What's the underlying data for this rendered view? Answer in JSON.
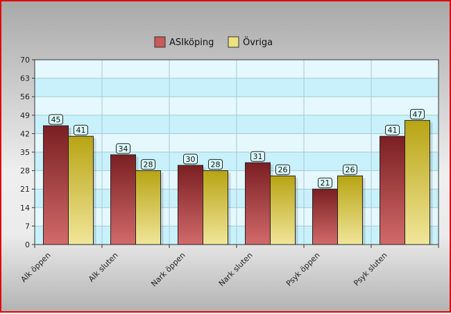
{
  "chart_data": {
    "type": "bar",
    "categories": [
      "Alk öppen",
      "Alk sluten",
      "Nark öppen",
      "Nark sluten",
      "Psyk öppen",
      "Psyk sluten"
    ],
    "series": [
      {
        "name": "ASIköping",
        "values": [
          45,
          34,
          30,
          31,
          21,
          41
        ]
      },
      {
        "name": "Övriga",
        "values": [
          41,
          28,
          28,
          26,
          26,
          47
        ]
      }
    ],
    "ylim": [
      0,
      70
    ],
    "yticks": [
      "0",
      "7",
      "14",
      "21",
      "28",
      "35",
      "42",
      "49",
      "56",
      "63",
      "70"
    ],
    "legend": "top-center",
    "grid": true,
    "data_labels": true,
    "colors": {
      "series_1_top": "#7a1f22",
      "series_1_bottom": "#d26a6a",
      "series_2_top": "#b8a414",
      "series_2_bottom": "#f1e69a",
      "plot_band_dark": "#c8f1fc",
      "plot_band_light": "#e4f8fe",
      "label_fill": "#dbfbfb",
      "frame_border": "#e00000"
    }
  }
}
